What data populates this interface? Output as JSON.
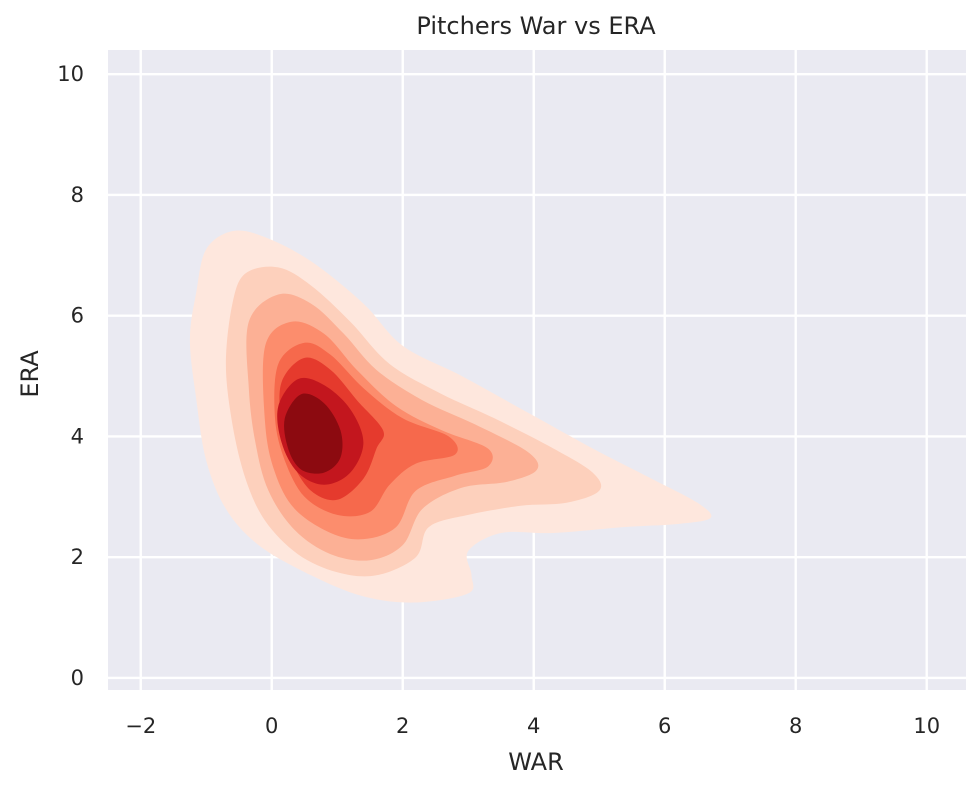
{
  "chart_data": {
    "type": "kde-filled-contour",
    "title": "Pitchers War vs ERA",
    "xlabel": "WAR",
    "ylabel": "ERA",
    "xlim": [
      -2.5,
      10.6
    ],
    "ylim": [
      -0.2,
      10.4
    ],
    "xticks": [
      -2,
      0,
      2,
      4,
      6,
      8,
      10
    ],
    "yticks": [
      0,
      2,
      4,
      6,
      8,
      10
    ],
    "grid": true,
    "colormap": "Reds",
    "levels": [
      {
        "color": "#fee7dd",
        "points": [
          [
            -1.0,
            7.1
          ],
          [
            -0.6,
            7.4
          ],
          [
            -0.1,
            7.3
          ],
          [
            0.6,
            6.9
          ],
          [
            1.4,
            6.2
          ],
          [
            2.0,
            5.5
          ],
          [
            2.9,
            5.0
          ],
          [
            3.9,
            4.4
          ],
          [
            4.9,
            3.8
          ],
          [
            5.8,
            3.3
          ],
          [
            6.5,
            2.9
          ],
          [
            6.7,
            2.65
          ],
          [
            6.2,
            2.55
          ],
          [
            5.4,
            2.5
          ],
          [
            4.3,
            2.4
          ],
          [
            3.5,
            2.4
          ],
          [
            3.0,
            2.1
          ],
          [
            3.05,
            1.7
          ],
          [
            3.0,
            1.4
          ],
          [
            2.2,
            1.25
          ],
          [
            1.4,
            1.35
          ],
          [
            0.6,
            1.7
          ],
          [
            -0.2,
            2.2
          ],
          [
            -0.7,
            2.8
          ],
          [
            -1.0,
            3.6
          ],
          [
            -1.15,
            4.6
          ],
          [
            -1.25,
            5.6
          ],
          [
            -1.15,
            6.4
          ]
        ]
      },
      {
        "color": "#fdd0bc",
        "points": [
          [
            -0.6,
            6.2
          ],
          [
            -0.4,
            6.7
          ],
          [
            0.1,
            6.8
          ],
          [
            0.6,
            6.5
          ],
          [
            1.2,
            5.9
          ],
          [
            1.8,
            5.2
          ],
          [
            2.6,
            4.7
          ],
          [
            3.4,
            4.3
          ],
          [
            4.3,
            3.8
          ],
          [
            4.9,
            3.4
          ],
          [
            5.0,
            3.1
          ],
          [
            4.5,
            2.9
          ],
          [
            3.8,
            2.85
          ],
          [
            3.0,
            2.7
          ],
          [
            2.4,
            2.5
          ],
          [
            2.2,
            2.0
          ],
          [
            1.6,
            1.7
          ],
          [
            1.0,
            1.75
          ],
          [
            0.4,
            2.05
          ],
          [
            -0.1,
            2.6
          ],
          [
            -0.4,
            3.3
          ],
          [
            -0.6,
            4.2
          ],
          [
            -0.7,
            5.2
          ]
        ]
      },
      {
        "color": "#fcb095",
        "points": [
          [
            -0.35,
            5.9
          ],
          [
            0.1,
            6.35
          ],
          [
            0.6,
            6.2
          ],
          [
            1.1,
            5.7
          ],
          [
            1.6,
            5.1
          ],
          [
            2.3,
            4.6
          ],
          [
            3.1,
            4.2
          ],
          [
            3.9,
            3.75
          ],
          [
            4.05,
            3.45
          ],
          [
            3.6,
            3.25
          ],
          [
            2.9,
            3.15
          ],
          [
            2.3,
            2.8
          ],
          [
            2.0,
            2.2
          ],
          [
            1.5,
            1.95
          ],
          [
            0.9,
            2.05
          ],
          [
            0.35,
            2.45
          ],
          [
            -0.05,
            3.1
          ],
          [
            -0.25,
            3.9
          ],
          [
            -0.35,
            4.8
          ]
        ]
      },
      {
        "color": "#fc8d6d",
        "points": [
          [
            -0.1,
            5.5
          ],
          [
            0.3,
            5.9
          ],
          [
            0.8,
            5.7
          ],
          [
            1.3,
            5.1
          ],
          [
            1.9,
            4.5
          ],
          [
            2.6,
            4.1
          ],
          [
            3.3,
            3.8
          ],
          [
            3.3,
            3.5
          ],
          [
            2.8,
            3.35
          ],
          [
            2.2,
            3.1
          ],
          [
            1.9,
            2.5
          ],
          [
            1.4,
            2.3
          ],
          [
            0.9,
            2.4
          ],
          [
            0.35,
            2.8
          ],
          [
            0.05,
            3.4
          ],
          [
            -0.1,
            4.2
          ]
        ]
      },
      {
        "color": "#f6694c",
        "points": [
          [
            0.1,
            5.2
          ],
          [
            0.5,
            5.55
          ],
          [
            0.9,
            5.35
          ],
          [
            1.4,
            4.8
          ],
          [
            2.0,
            4.3
          ],
          [
            2.7,
            4.0
          ],
          [
            2.8,
            3.7
          ],
          [
            2.2,
            3.55
          ],
          [
            1.8,
            3.2
          ],
          [
            1.5,
            2.75
          ],
          [
            1.0,
            2.7
          ],
          [
            0.5,
            3.0
          ],
          [
            0.2,
            3.6
          ],
          [
            0.05,
            4.3
          ]
        ]
      },
      {
        "color": "#e53a2d",
        "points": [
          [
            0.15,
            4.9
          ],
          [
            0.5,
            5.3
          ],
          [
            0.9,
            5.1
          ],
          [
            1.3,
            4.6
          ],
          [
            1.7,
            4.1
          ],
          [
            1.6,
            3.8
          ],
          [
            1.4,
            3.3
          ],
          [
            1.0,
            2.95
          ],
          [
            0.6,
            3.1
          ],
          [
            0.3,
            3.6
          ],
          [
            0.15,
            4.2
          ]
        ]
      },
      {
        "color": "#c3161e",
        "points": [
          [
            0.1,
            4.5
          ],
          [
            0.4,
            4.95
          ],
          [
            0.8,
            4.85
          ],
          [
            1.2,
            4.45
          ],
          [
            1.4,
            3.9
          ],
          [
            1.2,
            3.4
          ],
          [
            0.8,
            3.2
          ],
          [
            0.4,
            3.4
          ],
          [
            0.15,
            3.9
          ]
        ]
      },
      {
        "color": "#8c0a10",
        "points": [
          [
            0.2,
            4.3
          ],
          [
            0.45,
            4.7
          ],
          [
            0.8,
            4.55
          ],
          [
            1.05,
            4.1
          ],
          [
            1.05,
            3.65
          ],
          [
            0.8,
            3.4
          ],
          [
            0.45,
            3.45
          ],
          [
            0.25,
            3.8
          ]
        ]
      }
    ]
  }
}
